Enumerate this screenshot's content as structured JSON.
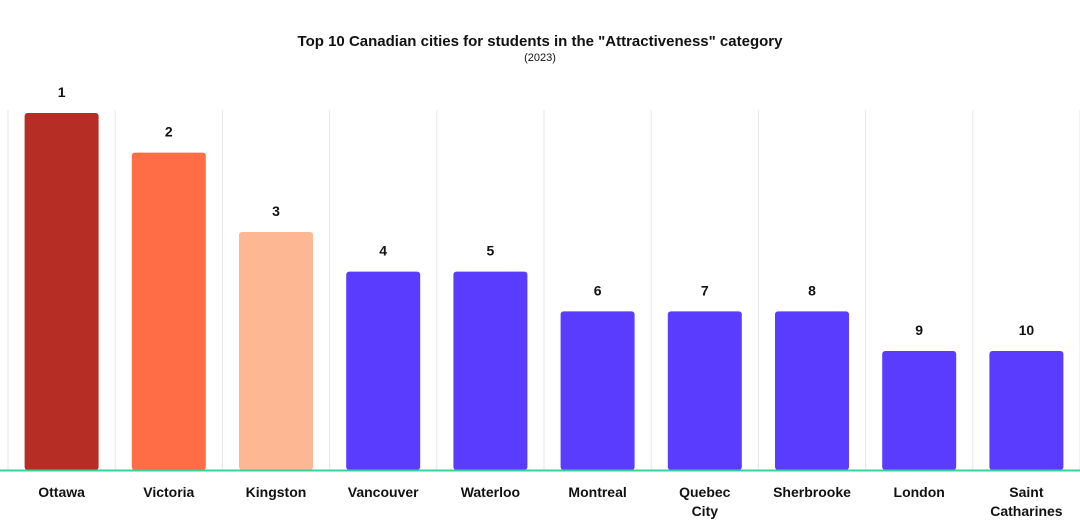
{
  "chart_data": {
    "type": "bar",
    "title": "Top 10 Canadian cities for students in the \"Attractiveness\" category",
    "subtitle": "(2023)",
    "xlabel": "",
    "ylabel": "",
    "grid": true,
    "categories": [
      [
        "Ottawa"
      ],
      [
        "Victoria"
      ],
      [
        "Kingston"
      ],
      [
        "Vancouver"
      ],
      [
        "Waterloo"
      ],
      [
        "Montreal"
      ],
      [
        "Quebec",
        "City"
      ],
      [
        "Sherbrooke"
      ],
      [
        "London"
      ],
      [
        "Saint",
        "Catharines"
      ]
    ],
    "values": [
      1,
      2,
      3,
      4,
      5,
      6,
      7,
      8,
      9,
      10
    ],
    "bar_heights_relative": [
      9,
      8,
      6,
      5,
      5,
      4,
      4,
      4,
      3,
      3
    ],
    "colors": [
      "#b52d25",
      "#ff6d47",
      "#fdb893",
      "#5a3cff",
      "#5a3cff",
      "#5a3cff",
      "#5a3cff",
      "#5a3cff",
      "#5a3cff",
      "#5a3cff"
    ],
    "baseline_color": "#3ccf9e",
    "grid_color": "#e6e6e6"
  }
}
